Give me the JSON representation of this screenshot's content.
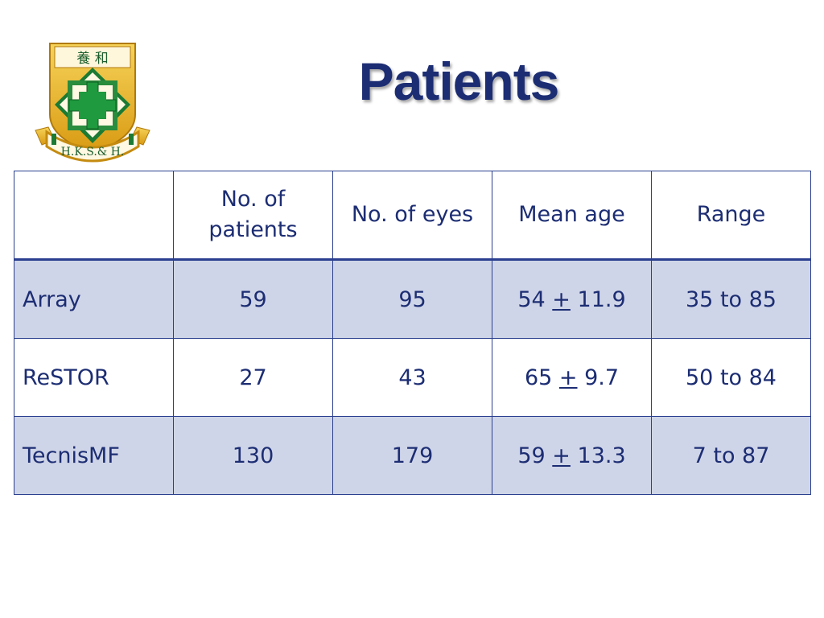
{
  "slide": {
    "title": "Patients",
    "logo": {
      "characters": "養 和",
      "banner": "H.K.S.& H."
    }
  },
  "table": {
    "headers": [
      "",
      "No. of patients",
      "No. of eyes",
      "Mean age",
      "Range"
    ],
    "rows": [
      {
        "label": "Array",
        "patients": "59",
        "eyes": "95",
        "age_mean": "54",
        "age_sign": "+",
        "age_sd": "11.9",
        "range": "35 to 85"
      },
      {
        "label": "ReSTOR",
        "patients": "27",
        "eyes": "43",
        "age_mean": "65",
        "age_sign": "+",
        "age_sd": "9.7",
        "range": "50 to 84"
      },
      {
        "label": "TecnisMF",
        "patients": "130",
        "eyes": "179",
        "age_mean": "59",
        "age_sign": "+",
        "age_sd": "13.3",
        "range": "7 to 87"
      }
    ]
  },
  "colors": {
    "text": "#1c2d73",
    "border": "#2a3f8f",
    "shade": "#cfd5e8",
    "logo_gold": "#e8b423",
    "logo_green": "#1b8a3a"
  }
}
